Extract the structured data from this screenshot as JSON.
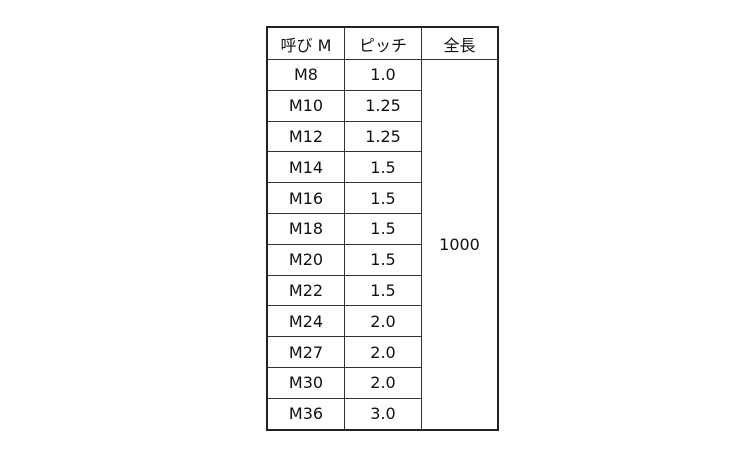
{
  "headers": [
    "呼び M",
    "ピッチ",
    "全長"
  ],
  "rows": [
    {
      "size": "M8",
      "pitch": "1.0"
    },
    {
      "size": "M10",
      "pitch": "1.25"
    },
    {
      "size": "M12",
      "pitch": "1.25"
    },
    {
      "size": "M14",
      "pitch": "1.5"
    },
    {
      "size": "M16",
      "pitch": "1.5"
    },
    {
      "size": "M18",
      "pitch": "1.5"
    },
    {
      "size": "M20",
      "pitch": "1.5"
    },
    {
      "size": "M22",
      "pitch": "1.5"
    },
    {
      "size": "M24",
      "pitch": "2.0"
    },
    {
      "size": "M27",
      "pitch": "2.0"
    },
    {
      "size": "M30",
      "pitch": "2.0"
    },
    {
      "size": "M36",
      "pitch": "3.0"
    }
  ],
  "length": "1000"
}
